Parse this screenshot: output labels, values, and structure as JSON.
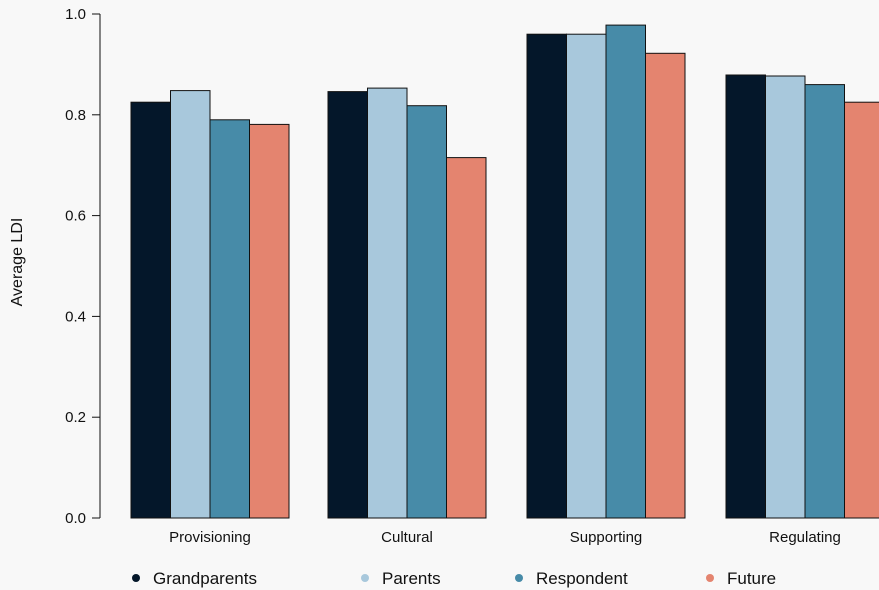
{
  "chart_data": {
    "type": "bar",
    "ylabel": "Average LDI",
    "ylim": [
      0,
      1.0
    ],
    "yticks": [
      "0.0",
      "0.2",
      "0.4",
      "0.6",
      "0.8",
      "1.0"
    ],
    "categories": [
      "Provisioning",
      "Cultural",
      "Supporting",
      "Regulating"
    ],
    "series": [
      {
        "name": "Grandparents",
        "color": "#04172a",
        "values": [
          0.825,
          0.846,
          0.96,
          0.879
        ]
      },
      {
        "name": "Parents",
        "color": "#a8c8dc",
        "values": [
          0.848,
          0.853,
          0.96,
          0.877
        ]
      },
      {
        "name": "Respondent",
        "color": "#478ba8",
        "values": [
          0.79,
          0.818,
          0.978,
          0.86
        ]
      },
      {
        "name": "Future",
        "color": "#e4846f",
        "values": [
          0.781,
          0.715,
          0.922,
          0.825
        ]
      }
    ],
    "legend_position": "bottom",
    "background": "#f8f8f8"
  }
}
